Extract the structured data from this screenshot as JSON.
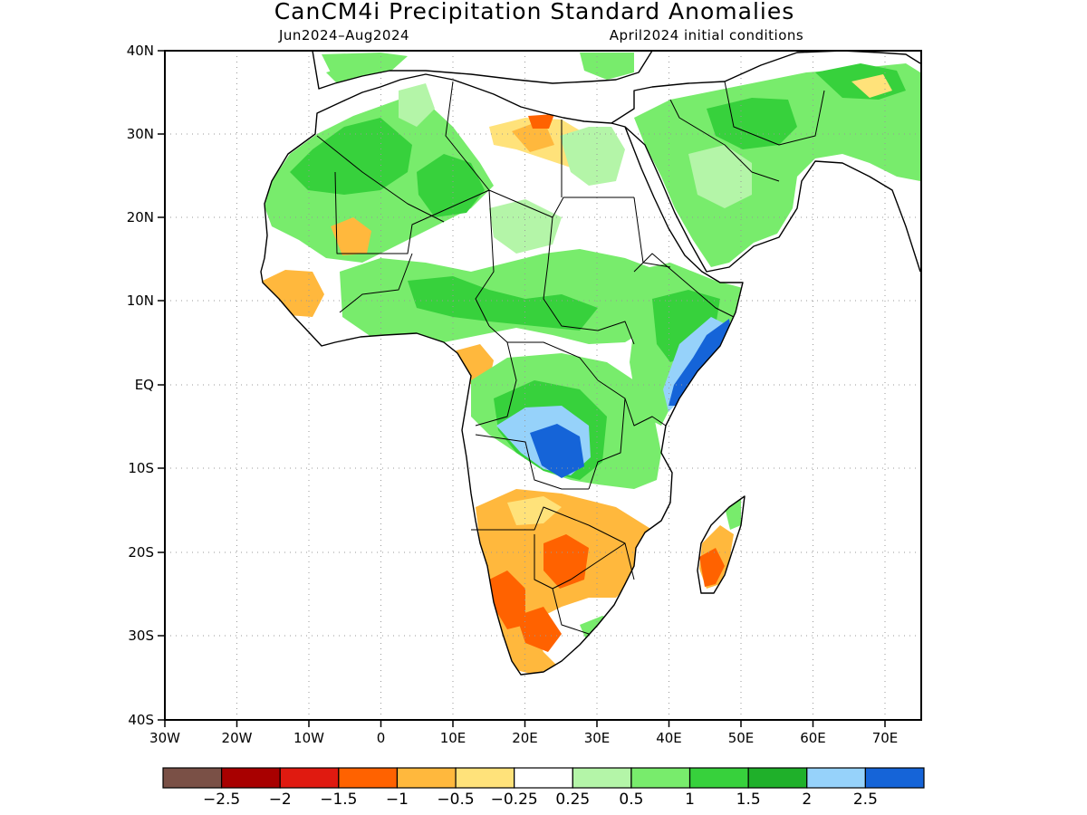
{
  "title": "CanCM4i Precipitation Standard Anomalies",
  "subtitle_left": "Jun2024–Aug2024",
  "subtitle_right": "April2024 initial conditions",
  "map": {
    "lon_range": [
      -30,
      75
    ],
    "lat_range": [
      -40,
      40
    ],
    "lat_ticks": [
      "40N",
      "30N",
      "20N",
      "10N",
      "EQ",
      "10S",
      "20S",
      "30S",
      "40S"
    ],
    "lon_ticks": [
      "30W",
      "20W",
      "10W",
      "0",
      "10E",
      "20E",
      "30E",
      "40E",
      "50E",
      "60E",
      "70E"
    ],
    "grid": "dotted"
  },
  "colorbar": {
    "colors": [
      "#7a5046",
      "#a80000",
      "#e01a10",
      "#ff6200",
      "#ffb83d",
      "#ffe27a",
      "#ffffff",
      "#b4f5a8",
      "#78ec6c",
      "#37d13c",
      "#1fb02a",
      "#96d2fa",
      "#1564d8"
    ],
    "labels": [
      "−2.5",
      "−2",
      "−1.5",
      "−1",
      "−0.5",
      "−0.25",
      "0.25",
      "0.5",
      "1",
      "1.5",
      "2",
      "2.5"
    ]
  }
}
